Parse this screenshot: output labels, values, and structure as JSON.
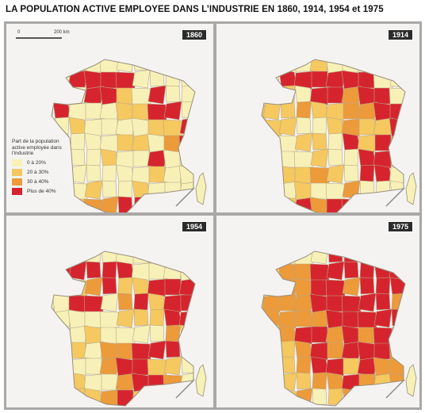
{
  "title": "LA POPULATION ACTIVE EMPLOYEE DANS L’INDUSTRIE EN 1860, 1914, 1954 et 1975",
  "scale": {
    "zero": "0",
    "label": "200 km"
  },
  "legend": {
    "title": "Part de la population active employée dans l'industrie",
    "items": [
      {
        "label": "0 à 20%",
        "color": "#f7f1b8"
      },
      {
        "label": "20 à 30%",
        "color": "#f5c860"
      },
      {
        "label": "30 à 40%",
        "color": "#ec9a3a"
      },
      {
        "label": "Plus de 40%",
        "color": "#d6242e"
      }
    ]
  },
  "maps": [
    {
      "year": "1860",
      "cells": "0000000000 0033330000 0003310300 0300011330 0010000113 0000011023 0000100300 0000000100 0001001000 0012233000"
    },
    {
      "year": "1914",
      "cells": "0000100000 0033333300 0110332330 1112112233 1110012113 0101103132 2100100331 1111210330 1101002000 0013233000"
    },
    {
      "year": "1954",
      "cells": "0000000000 0333330000 0012311333 0033023133 0000011133 0001000021 1110223330 0100233110 1010023320 0011231100"
    },
    {
      "year": "1975",
      "cells": "0000033000 0122333333 2222332333 1222333332 2222233333 1123323232 2212323332 2112331322 1111223212 1212012210"
    }
  ]
}
